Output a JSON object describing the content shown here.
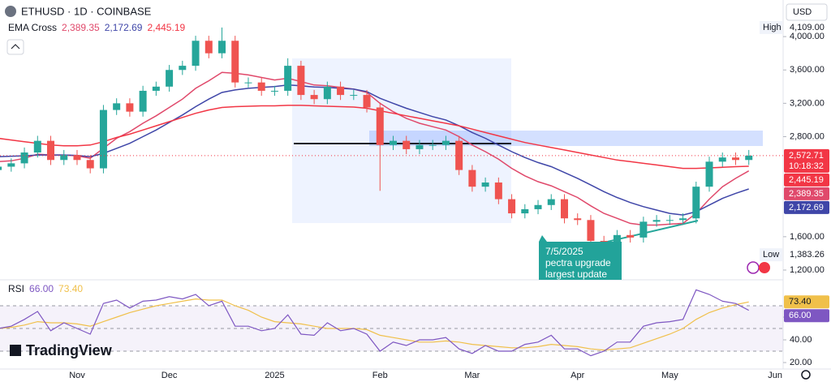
{
  "chart_data": {
    "type": "candlestick",
    "title": "ETHUSD · 1D · COINBASE",
    "currency": "USD",
    "categories": [
      null,
      null,
      null,
      null,
      null,
      null,
      "Nov",
      null,
      null,
      null,
      null,
      null,
      null,
      "Dec",
      null,
      null,
      null,
      null,
      null,
      null,
      null,
      "2025",
      null,
      null,
      null,
      null,
      null,
      null,
      null,
      "Feb",
      null,
      null,
      null,
      null,
      null,
      null,
      "Mar",
      null,
      null,
      null,
      null,
      null,
      null,
      null,
      "Apr",
      null,
      null,
      null,
      null,
      null,
      null,
      "May",
      null,
      null,
      null,
      null,
      null,
      null,
      null,
      "Jun"
    ],
    "open": [
      2400,
      2440,
      2480,
      2610,
      2750,
      2520,
      2580,
      2520,
      2420,
      3120,
      3200,
      3100,
      3350,
      3400,
      3600,
      3650,
      3950,
      3800,
      3950,
      3450,
      3450,
      3350,
      3350,
      3650,
      3300,
      3250,
      3400,
      3300,
      3300,
      3150,
      2700,
      2750,
      2650,
      2700,
      2700,
      2750,
      2400,
      2200,
      2250,
      2050,
      1880,
      1930,
      1980,
      2050,
      1820,
      1800,
      1550,
      1520,
      1620,
      1590,
      1780,
      1800,
      1800,
      1820,
      2200,
      2500,
      2550,
      2520,
      null,
      null
    ],
    "high": [
      2500,
      2540,
      2670,
      2810,
      2810,
      2640,
      2640,
      2580,
      3180,
      3260,
      3260,
      3410,
      3460,
      3660,
      3710,
      4010,
      4010,
      4109,
      4010,
      3510,
      3510,
      3410,
      3740,
      3710,
      3360,
      3460,
      3460,
      3360,
      3360,
      3210,
      2810,
      2810,
      2760,
      2760,
      2810,
      2810,
      2460,
      2310,
      2310,
      2110,
      1990,
      2040,
      2110,
      2110,
      1880,
      1860,
      1610,
      1680,
      1680,
      1840,
      1860,
      1860,
      1880,
      2260,
      2560,
      2610,
      2610,
      2640,
      null,
      null
    ],
    "low": [
      2340,
      2380,
      2420,
      2550,
      2460,
      2460,
      2460,
      2360,
      2360,
      3060,
      3040,
      3040,
      3290,
      3340,
      3540,
      3590,
      3740,
      3740,
      3390,
      3390,
      3290,
      3290,
      3290,
      3240,
      3190,
      3190,
      3240,
      3240,
      3090,
      2150,
      2640,
      2590,
      2590,
      2640,
      2640,
      2340,
      2140,
      2140,
      1990,
      1820,
      1820,
      1870,
      1920,
      1760,
      1740,
      1383.26,
      1460,
      1460,
      1530,
      1530,
      1720,
      1740,
      1740,
      1760,
      2140,
      2440,
      2460,
      2460,
      null,
      null
    ],
    "close": [
      2440,
      2480,
      2610,
      2750,
      2520,
      2580,
      2520,
      2420,
      3120,
      3200,
      3100,
      3350,
      3400,
      3600,
      3650,
      3950,
      3800,
      3950,
      3450,
      3450,
      3350,
      3350,
      3650,
      3300,
      3250,
      3400,
      3300,
      3300,
      3150,
      2700,
      2750,
      2650,
      2700,
      2700,
      2750,
      2400,
      2200,
      2250,
      2050,
      1880,
      1930,
      1980,
      2050,
      1820,
      1800,
      1550,
      1520,
      1620,
      1590,
      1780,
      1800,
      1800,
      1820,
      2200,
      2500,
      2550,
      2520,
      2572.71,
      null,
      null
    ],
    "up_color": "#26a69a",
    "down_color": "#ef5350",
    "ylim": [
      1083,
      4439
    ],
    "yticks": [
      {
        "value": 1200,
        "label": "1,200.00"
      },
      {
        "value": 1600,
        "label": "1,600.00"
      },
      {
        "value": 2800,
        "label": "2,800.00"
      },
      {
        "value": 3200,
        "label": "3,200.00"
      },
      {
        "value": 3600,
        "label": "3,600.00"
      },
      {
        "value": 4000,
        "label": "4,000.00"
      }
    ],
    "last_label": "2,572.71",
    "countdown": "10:18:32",
    "high_text": "High",
    "high_label": "4,109.00",
    "low_text": "Low",
    "low_label": "1,383.26",
    "indicator": {
      "name": "EMA Cross",
      "series": [
        {
          "color": "#e0496b",
          "last_label": "2,389.35",
          "values": [
            2500,
            2510,
            2540,
            2590,
            2580,
            2580,
            2570,
            2540,
            2660,
            2780,
            2860,
            2960,
            3050,
            3150,
            3250,
            3380,
            3470,
            3570,
            3560,
            3540,
            3510,
            3480,
            3500,
            3460,
            3420,
            3410,
            3390,
            3370,
            3330,
            3200,
            3100,
            3020,
            2960,
            2920,
            2880,
            2800,
            2700,
            2620,
            2530,
            2420,
            2330,
            2260,
            2210,
            2140,
            2070,
            1970,
            1880,
            1820,
            1760,
            1740,
            1740,
            1750,
            1760,
            1880,
            2050,
            2200,
            2300,
            2389.35,
            null,
            null
          ]
        },
        {
          "color": "#3f46a8",
          "last_label": "2,172.69",
          "values": [
            2560,
            2565,
            2570,
            2580,
            2580,
            2580,
            2575,
            2560,
            2600,
            2660,
            2720,
            2800,
            2880,
            2970,
            3060,
            3160,
            3250,
            3330,
            3360,
            3380,
            3390,
            3400,
            3420,
            3410,
            3395,
            3390,
            3380,
            3370,
            3340,
            3260,
            3200,
            3140,
            3090,
            3040,
            3000,
            2930,
            2850,
            2780,
            2700,
            2620,
            2550,
            2490,
            2440,
            2370,
            2300,
            2220,
            2140,
            2070,
            2010,
            1960,
            1920,
            1880,
            1860,
            1900,
            1980,
            2060,
            2120,
            2172.69,
            null,
            null
          ]
        },
        {
          "color": "#f23645",
          "last_label": "2,445.19",
          "values": [
            2780,
            2760,
            2740,
            2720,
            2700,
            2690,
            2690,
            2700,
            2740,
            2790,
            2830,
            2880,
            2930,
            2980,
            3030,
            3080,
            3120,
            3150,
            3160,
            3165,
            3170,
            3170,
            3175,
            3175,
            3170,
            3165,
            3160,
            3155,
            3140,
            3110,
            3080,
            3050,
            3020,
            2990,
            2960,
            2930,
            2890,
            2850,
            2810,
            2770,
            2730,
            2700,
            2670,
            2640,
            2610,
            2580,
            2550,
            2520,
            2500,
            2480,
            2460,
            2440,
            2420,
            2420,
            2425,
            2432,
            2440,
            2445.19,
            null,
            null
          ]
        }
      ]
    },
    "annotation": [
      "7/5/2025",
      "pectra upgrade",
      "largest update"
    ],
    "rsi": {
      "name": "RSI",
      "ylim": [
        14.3,
        89.3
      ],
      "yticks": [
        {
          "value": 20,
          "label": "20.00"
        },
        {
          "value": 40,
          "label": "40.00"
        },
        {
          "value": 60,
          "label": "60.00"
        }
      ],
      "levels": [
        30,
        50,
        70
      ],
      "series": [
        {
          "color": "#7e57c2",
          "last_label": "66.00",
          "values": [
            50,
            52,
            58,
            65,
            48,
            55,
            50,
            45,
            72,
            75,
            68,
            74,
            75,
            78,
            76,
            80,
            70,
            74,
            52,
            52,
            48,
            50,
            62,
            45,
            44,
            55,
            48,
            50,
            45,
            30,
            38,
            35,
            40,
            40,
            42,
            32,
            28,
            35,
            30,
            30,
            36,
            38,
            44,
            32,
            32,
            26,
            30,
            38,
            38,
            52,
            55,
            56,
            58,
            84,
            80,
            74,
            72,
            66,
            null,
            null
          ]
        },
        {
          "color": "#f0c04a",
          "last_label": "73.40",
          "values": [
            50,
            51,
            53,
            56,
            55,
            55,
            54,
            52,
            56,
            60,
            64,
            67,
            70,
            72,
            74,
            76,
            75,
            75,
            70,
            66,
            60,
            56,
            55,
            54,
            52,
            50,
            50,
            50,
            49,
            44,
            42,
            40,
            38,
            38,
            39,
            38,
            36,
            35,
            34,
            33,
            33,
            34,
            36,
            35,
            34,
            32,
            31,
            32,
            33,
            37,
            41,
            45,
            50,
            58,
            64,
            68,
            71,
            73.4,
            null,
            null
          ]
        }
      ]
    },
    "brand": "TradingView"
  }
}
